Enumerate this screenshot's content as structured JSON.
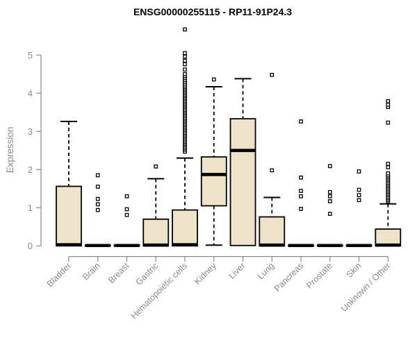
{
  "chart_data": {
    "type": "boxplot",
    "title": "ENSG00000255115 - RP11-91P24.3",
    "ylabel": "Expression",
    "xlabel": "",
    "ylim": [
      0,
      5.8
    ],
    "yticks": [
      0,
      1,
      2,
      3,
      4,
      5
    ],
    "grid": false,
    "legend": "none",
    "colors": {
      "box_fill": "#ece3c8",
      "box_border": "#000000",
      "axis": "#8a8a8a",
      "title_text": "#000000"
    },
    "categories": [
      "Bladder",
      "Brain",
      "Breast",
      "Gastric",
      "Hematopoietic cells",
      "Kidney",
      "Liver",
      "Lung",
      "Pancreas",
      "Prostate",
      "Skin",
      "Unknown / Other"
    ],
    "series": [
      {
        "name": "Bladder",
        "whisker_low": 0,
        "q1": 0,
        "median": 0.03,
        "q3": 1.56,
        "whisker_high": 3.26,
        "outliers": []
      },
      {
        "name": "Brain",
        "whisker_low": 0,
        "q1": 0,
        "median": 0.01,
        "q3": 0.02,
        "whisker_high": 0.02,
        "outliers": [
          0.94,
          1.09,
          1.23,
          1.55,
          1.85
        ]
      },
      {
        "name": "Breast",
        "whisker_low": 0,
        "q1": 0,
        "median": 0.01,
        "q3": 0.02,
        "whisker_high": 0.02,
        "outliers": [
          0.81,
          0.96,
          1.3
        ]
      },
      {
        "name": "Gastric",
        "whisker_low": 0,
        "q1": 0,
        "median": 0.02,
        "q3": 0.7,
        "whisker_high": 1.76,
        "outliers": [
          2.08
        ]
      },
      {
        "name": "Hematopoietic cells",
        "whisker_low": 0,
        "q1": 0,
        "median": 0.03,
        "q3": 0.94,
        "whisker_high": 2.3,
        "outliers": [
          2.47,
          2.52,
          2.56,
          2.6,
          2.64,
          2.68,
          2.72,
          2.76,
          2.8,
          2.84,
          2.88,
          2.92,
          2.96,
          3.0,
          3.04,
          3.08,
          3.12,
          3.16,
          3.2,
          3.24,
          3.28,
          3.32,
          3.36,
          3.4,
          3.44,
          3.48,
          3.52,
          3.56,
          3.6,
          3.64,
          3.68,
          3.72,
          3.76,
          3.8,
          3.84,
          3.88,
          3.92,
          3.96,
          4.0,
          4.04,
          4.08,
          4.12,
          4.16,
          4.2,
          4.25,
          4.3,
          4.35,
          4.4,
          4.45,
          4.5,
          4.62,
          4.76,
          4.85,
          4.96,
          5.05,
          5.67
        ]
      },
      {
        "name": "Kidney",
        "whisker_low": 0.02,
        "q1": 1.05,
        "median": 1.87,
        "q3": 2.33,
        "whisker_high": 4.17,
        "outliers": [
          4.36
        ]
      },
      {
        "name": "Liver",
        "whisker_low": 0.01,
        "q1": 0.01,
        "median": 2.5,
        "q3": 3.33,
        "whisker_high": 4.38,
        "outliers": []
      },
      {
        "name": "Lung",
        "whisker_low": 0,
        "q1": 0,
        "median": 0.02,
        "q3": 0.76,
        "whisker_high": 1.27,
        "outliers": [
          1.98,
          4.48
        ]
      },
      {
        "name": "Pancreas",
        "whisker_low": 0,
        "q1": 0,
        "median": 0.01,
        "q3": 0.02,
        "whisker_high": 0.02,
        "outliers": [
          0.97,
          1.3,
          1.44,
          1.79,
          3.26
        ]
      },
      {
        "name": "Prostate",
        "whisker_low": 0,
        "q1": 0,
        "median": 0.01,
        "q3": 0.02,
        "whisker_high": 0.02,
        "outliers": [
          0.84,
          1.17,
          1.3,
          1.41,
          2.09
        ]
      },
      {
        "name": "Skin",
        "whisker_low": 0,
        "q1": 0,
        "median": 0.01,
        "q3": 0.02,
        "whisker_high": 0.02,
        "outliers": [
          1.2,
          1.33,
          1.47,
          1.95
        ]
      },
      {
        "name": "Unknown / Other",
        "whisker_low": 0,
        "q1": 0,
        "median": 0.02,
        "q3": 0.44,
        "whisker_high": 1.1,
        "outliers": [
          1.17,
          1.21,
          1.25,
          1.29,
          1.33,
          1.37,
          1.41,
          1.45,
          1.49,
          1.53,
          1.57,
          1.61,
          1.65,
          1.69,
          1.73,
          1.77,
          1.81,
          1.85,
          1.9,
          2.06,
          2.15,
          3.23,
          3.64,
          3.7,
          3.79
        ]
      }
    ]
  }
}
